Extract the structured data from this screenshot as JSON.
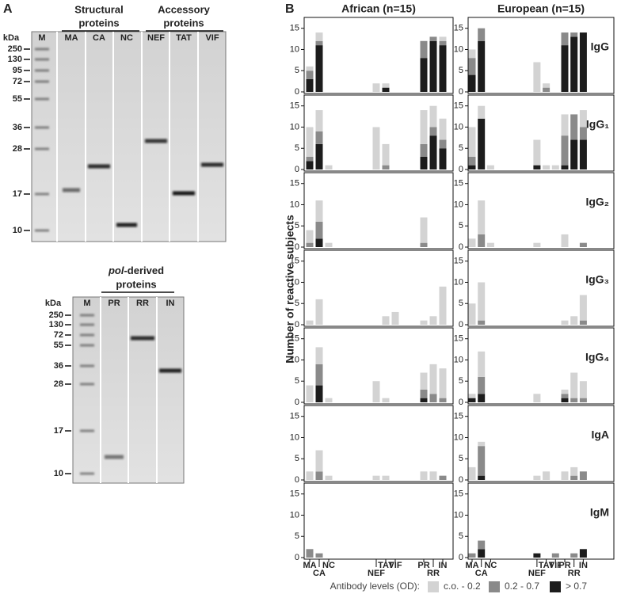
{
  "panel_a": {
    "label": "A",
    "gels": [
      {
        "unit": "kDa",
        "marker_lane": "M",
        "markers": [
          250,
          130,
          95,
          72,
          55,
          36,
          28,
          17,
          10
        ],
        "groups": [
          {
            "lines": [
              "Structural",
              "proteins"
            ],
            "lanes": [
              "MA",
              "CA",
              "NC"
            ]
          },
          {
            "lines": [
              "Accessory",
              "proteins"
            ],
            "lanes": [
              "NEF",
              "TAT",
              "VIF"
            ]
          }
        ]
      },
      {
        "unit": "kDa",
        "marker_lane": "M",
        "markers": [
          250,
          130,
          72,
          55,
          36,
          28,
          17,
          10
        ],
        "groups": [
          {
            "italic": "pol",
            "rest": "-derived",
            "line2": "proteins",
            "lanes": [
              "PR",
              "RR",
              "IN"
            ]
          }
        ]
      }
    ]
  },
  "chart_data": {
    "type": "bar",
    "stacked": true,
    "label": "B",
    "ylabel": "Number of reactive subjects",
    "groups": [
      "African (n=15)",
      "European (n=15)"
    ],
    "categories": [
      "MA",
      "CA",
      "NC",
      "NEF",
      "TAT",
      "VIF",
      "PR",
      "RR",
      "IN"
    ],
    "legend_title": "Antibody levels (OD):",
    "series": [
      {
        "name": "c.o. - 0.2",
        "color": "#d3d3d3"
      },
      {
        "name": "0.2 - 0.7",
        "color": "#8a8a8a"
      },
      {
        "name": "> 0.7",
        "color": "#1c1c1c"
      }
    ],
    "ylim": [
      0,
      17
    ],
    "yticks": [
      0,
      5,
      10,
      15
    ],
    "rows": [
      {
        "label": "IgG",
        "values": [
          [
            [
              1,
              2,
              0,
              2,
              1,
              0,
              0,
              0,
              1
            ],
            [
              2,
              1,
              0,
              0,
              0,
              0,
              4,
              1,
              1
            ],
            [
              3,
              11,
              0,
              0,
              1,
              0,
              8,
              12,
              11
            ]
          ],
          [
            [
              2,
              0,
              0,
              7,
              1,
              0,
              0,
              0,
              0
            ],
            [
              4,
              3,
              0,
              0,
              1,
              0,
              3,
              1,
              0
            ],
            [
              4,
              12,
              0,
              0,
              0,
              0,
              11,
              13,
              14
            ]
          ]
        ]
      },
      {
        "label": "IgG₁",
        "values": [
          [
            [
              7,
              5,
              1,
              10,
              5,
              0,
              8,
              5,
              5
            ],
            [
              1,
              3,
              0,
              0,
              1,
              0,
              3,
              2,
              2
            ],
            [
              2,
              6,
              0,
              0,
              0,
              0,
              3,
              8,
              5
            ]
          ],
          [
            [
              7,
              3,
              1,
              6,
              1,
              1,
              5,
              0,
              4
            ],
            [
              2,
              0,
              0,
              0,
              0,
              0,
              7,
              6,
              3
            ],
            [
              1,
              12,
              0,
              1,
              0,
              0,
              1,
              7,
              7
            ]
          ]
        ]
      },
      {
        "label": "IgG₂",
        "values": [
          [
            [
              3,
              5,
              1,
              0,
              0,
              0,
              6,
              0,
              0
            ],
            [
              1,
              4,
              0,
              0,
              0,
              0,
              1,
              0,
              0
            ],
            [
              0,
              2,
              0,
              0,
              0,
              0,
              0,
              0,
              0
            ]
          ],
          [
            [
              2,
              8,
              1,
              1,
              0,
              0,
              3,
              0,
              0
            ],
            [
              0,
              3,
              0,
              0,
              0,
              0,
              0,
              0,
              1
            ],
            [
              0,
              0,
              0,
              0,
              0,
              0,
              0,
              0,
              0
            ]
          ]
        ]
      },
      {
        "label": "IgG₃",
        "values": [
          [
            [
              1,
              6,
              0,
              0,
              2,
              3,
              1,
              2,
              9
            ],
            [
              0,
              0,
              0,
              0,
              0,
              0,
              0,
              0,
              0
            ],
            [
              0,
              0,
              0,
              0,
              0,
              0,
              0,
              0,
              0
            ]
          ],
          [
            [
              5,
              9,
              0,
              0,
              0,
              0,
              1,
              2,
              6
            ],
            [
              0,
              1,
              0,
              0,
              0,
              0,
              0,
              0,
              1
            ],
            [
              0,
              0,
              0,
              0,
              0,
              0,
              0,
              0,
              0
            ]
          ]
        ]
      },
      {
        "label": "IgG₄",
        "values": [
          [
            [
              4,
              4,
              1,
              5,
              1,
              0,
              4,
              7,
              7
            ],
            [
              0,
              5,
              0,
              0,
              0,
              0,
              2,
              2,
              1
            ],
            [
              0,
              4,
              0,
              0,
              0,
              0,
              1,
              0,
              0
            ]
          ],
          [
            [
              1,
              6,
              0,
              2,
              0,
              0,
              1,
              6,
              4
            ],
            [
              0,
              4,
              0,
              0,
              0,
              0,
              1,
              1,
              1
            ],
            [
              1,
              2,
              0,
              0,
              0,
              0,
              1,
              0,
              0
            ]
          ]
        ]
      },
      {
        "label": "IgA",
        "values": [
          [
            [
              2,
              5,
              1,
              1,
              1,
              0,
              2,
              2,
              0
            ],
            [
              0,
              2,
              0,
              0,
              0,
              0,
              0,
              0,
              1
            ],
            [
              0,
              0,
              0,
              0,
              0,
              0,
              0,
              0,
              0
            ]
          ],
          [
            [
              3,
              1,
              0,
              1,
              2,
              0,
              2,
              2,
              0
            ],
            [
              0,
              7,
              0,
              0,
              0,
              0,
              0,
              1,
              2
            ],
            [
              0,
              1,
              0,
              0,
              0,
              0,
              0,
              0,
              0
            ]
          ]
        ]
      },
      {
        "label": "IgM",
        "values": [
          [
            [
              0,
              0,
              0,
              0,
              0,
              0,
              0,
              0,
              0
            ],
            [
              2,
              1,
              0,
              0,
              0,
              0,
              0,
              0,
              0
            ],
            [
              0,
              0,
              0,
              0,
              0,
              0,
              0,
              0,
              0
            ]
          ],
          [
            [
              0,
              0,
              0,
              0,
              0,
              0,
              0,
              0,
              0
            ],
            [
              1,
              2,
              0,
              0,
              0,
              1,
              0,
              1,
              0
            ],
            [
              0,
              2,
              0,
              1,
              0,
              0,
              0,
              0,
              2
            ]
          ]
        ]
      }
    ]
  }
}
